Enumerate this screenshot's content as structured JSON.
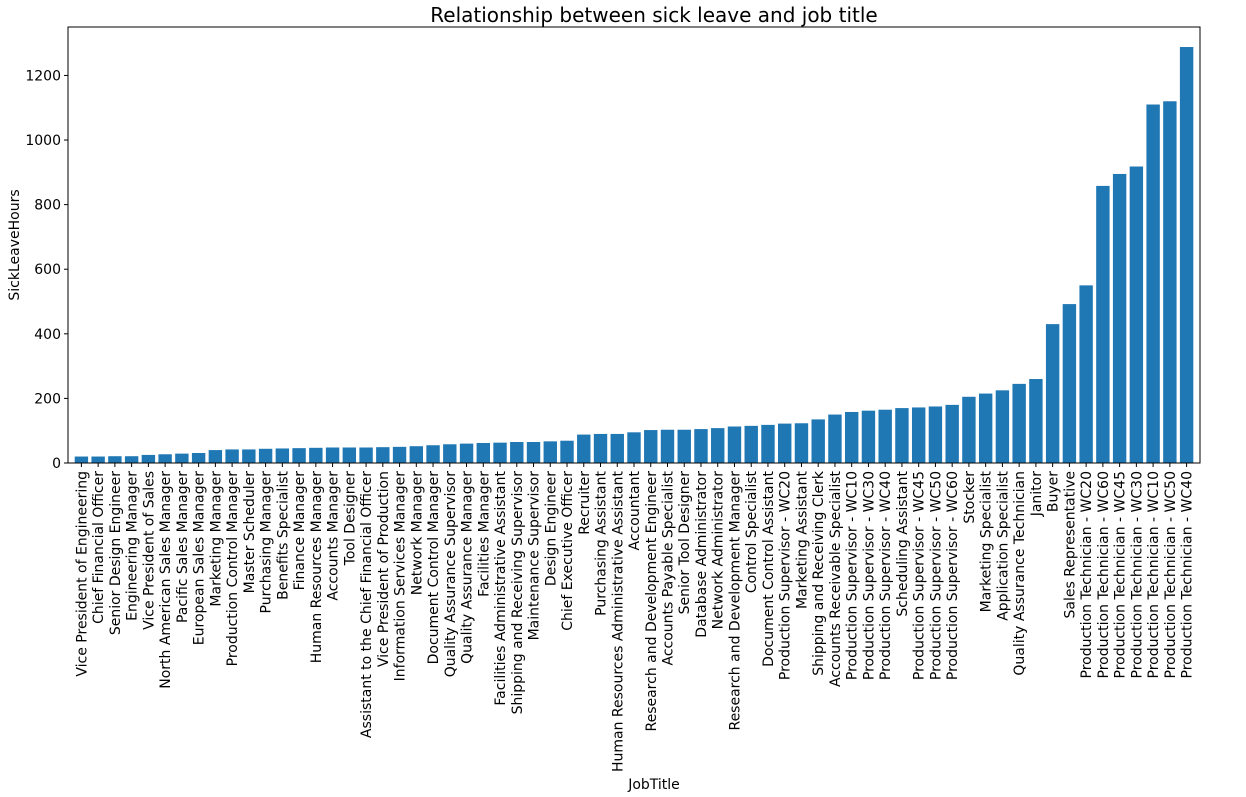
{
  "chart_data": {
    "type": "bar",
    "title": "Relationship between sick leave and job title",
    "xlabel": "JobTitle",
    "ylabel": "SickLeaveHours",
    "ylim": [
      0,
      1350
    ],
    "yticks": [
      0,
      200,
      400,
      600,
      800,
      1000,
      1200
    ],
    "grid": false,
    "bar_color": "#1f77b4",
    "categories": [
      "Vice President of Engineering",
      "Chief Financial Officer",
      "Senior Design Engineer",
      "Engineering Manager",
      "Vice President of Sales",
      "North American Sales Manager",
      "Pacific Sales Manager",
      "European Sales Manager",
      "Marketing Manager",
      "Production Control Manager",
      "Master Scheduler",
      "Purchasing Manager",
      "Benefits Specialist",
      "Finance Manager",
      "Human Resources Manager",
      "Accounts Manager",
      "Tool Designer",
      "Assistant to the Chief Financial Officer",
      "Vice President of Production",
      "Information Services Manager",
      "Network Manager",
      "Document Control Manager",
      "Quality Assurance Supervisor",
      "Quality Assurance Manager",
      "Facilities Manager",
      "Facilities Administrative Assistant",
      "Shipping and Receiving Supervisor",
      "Maintenance Supervisor",
      "Design Engineer",
      "Chief Executive Officer",
      "Recruiter",
      "Purchasing Assistant",
      "Human Resources Administrative Assistant",
      "Accountant",
      "Research and Development Engineer",
      "Accounts Payable Specialist",
      "Senior Tool Designer",
      "Database Administrator",
      "Network Administrator",
      "Research and Development Manager",
      "Control Specialist",
      "Document Control Assistant",
      "Production Supervisor - WC20",
      "Marketing Assistant",
      "Shipping and Receiving Clerk",
      "Accounts Receivable Specialist",
      "Production Supervisor - WC10",
      "Production Supervisor - WC30",
      "Production Supervisor - WC40",
      "Scheduling Assistant",
      "Production Supervisor - WC45",
      "Production Supervisor - WC50",
      "Production Supervisor - WC60",
      "Stocker",
      "Marketing Specialist",
      "Application Specialist",
      "Quality Assurance Technician",
      "Janitor",
      "Buyer",
      "Sales Representative",
      "Production Technician - WC20",
      "Production Technician - WC60",
      "Production Technician - WC45",
      "Production Technician - WC30",
      "Production Technician - WC10",
      "Production Technician - WC50",
      "Production Technician - WC40"
    ],
    "values": [
      20,
      20,
      21,
      21,
      25,
      27,
      29,
      31,
      40,
      42,
      42,
      44,
      45,
      46,
      47,
      48,
      48,
      48,
      49,
      50,
      52,
      55,
      58,
      60,
      62,
      63,
      65,
      65,
      67,
      69,
      88,
      90,
      90,
      95,
      102,
      103,
      103,
      105,
      108,
      113,
      115,
      118,
      122,
      123,
      135,
      150,
      158,
      162,
      165,
      170,
      172,
      175,
      180,
      205,
      215,
      225,
      245,
      260,
      430,
      492,
      550,
      858,
      895,
      918,
      1110,
      1120,
      1288
    ]
  }
}
